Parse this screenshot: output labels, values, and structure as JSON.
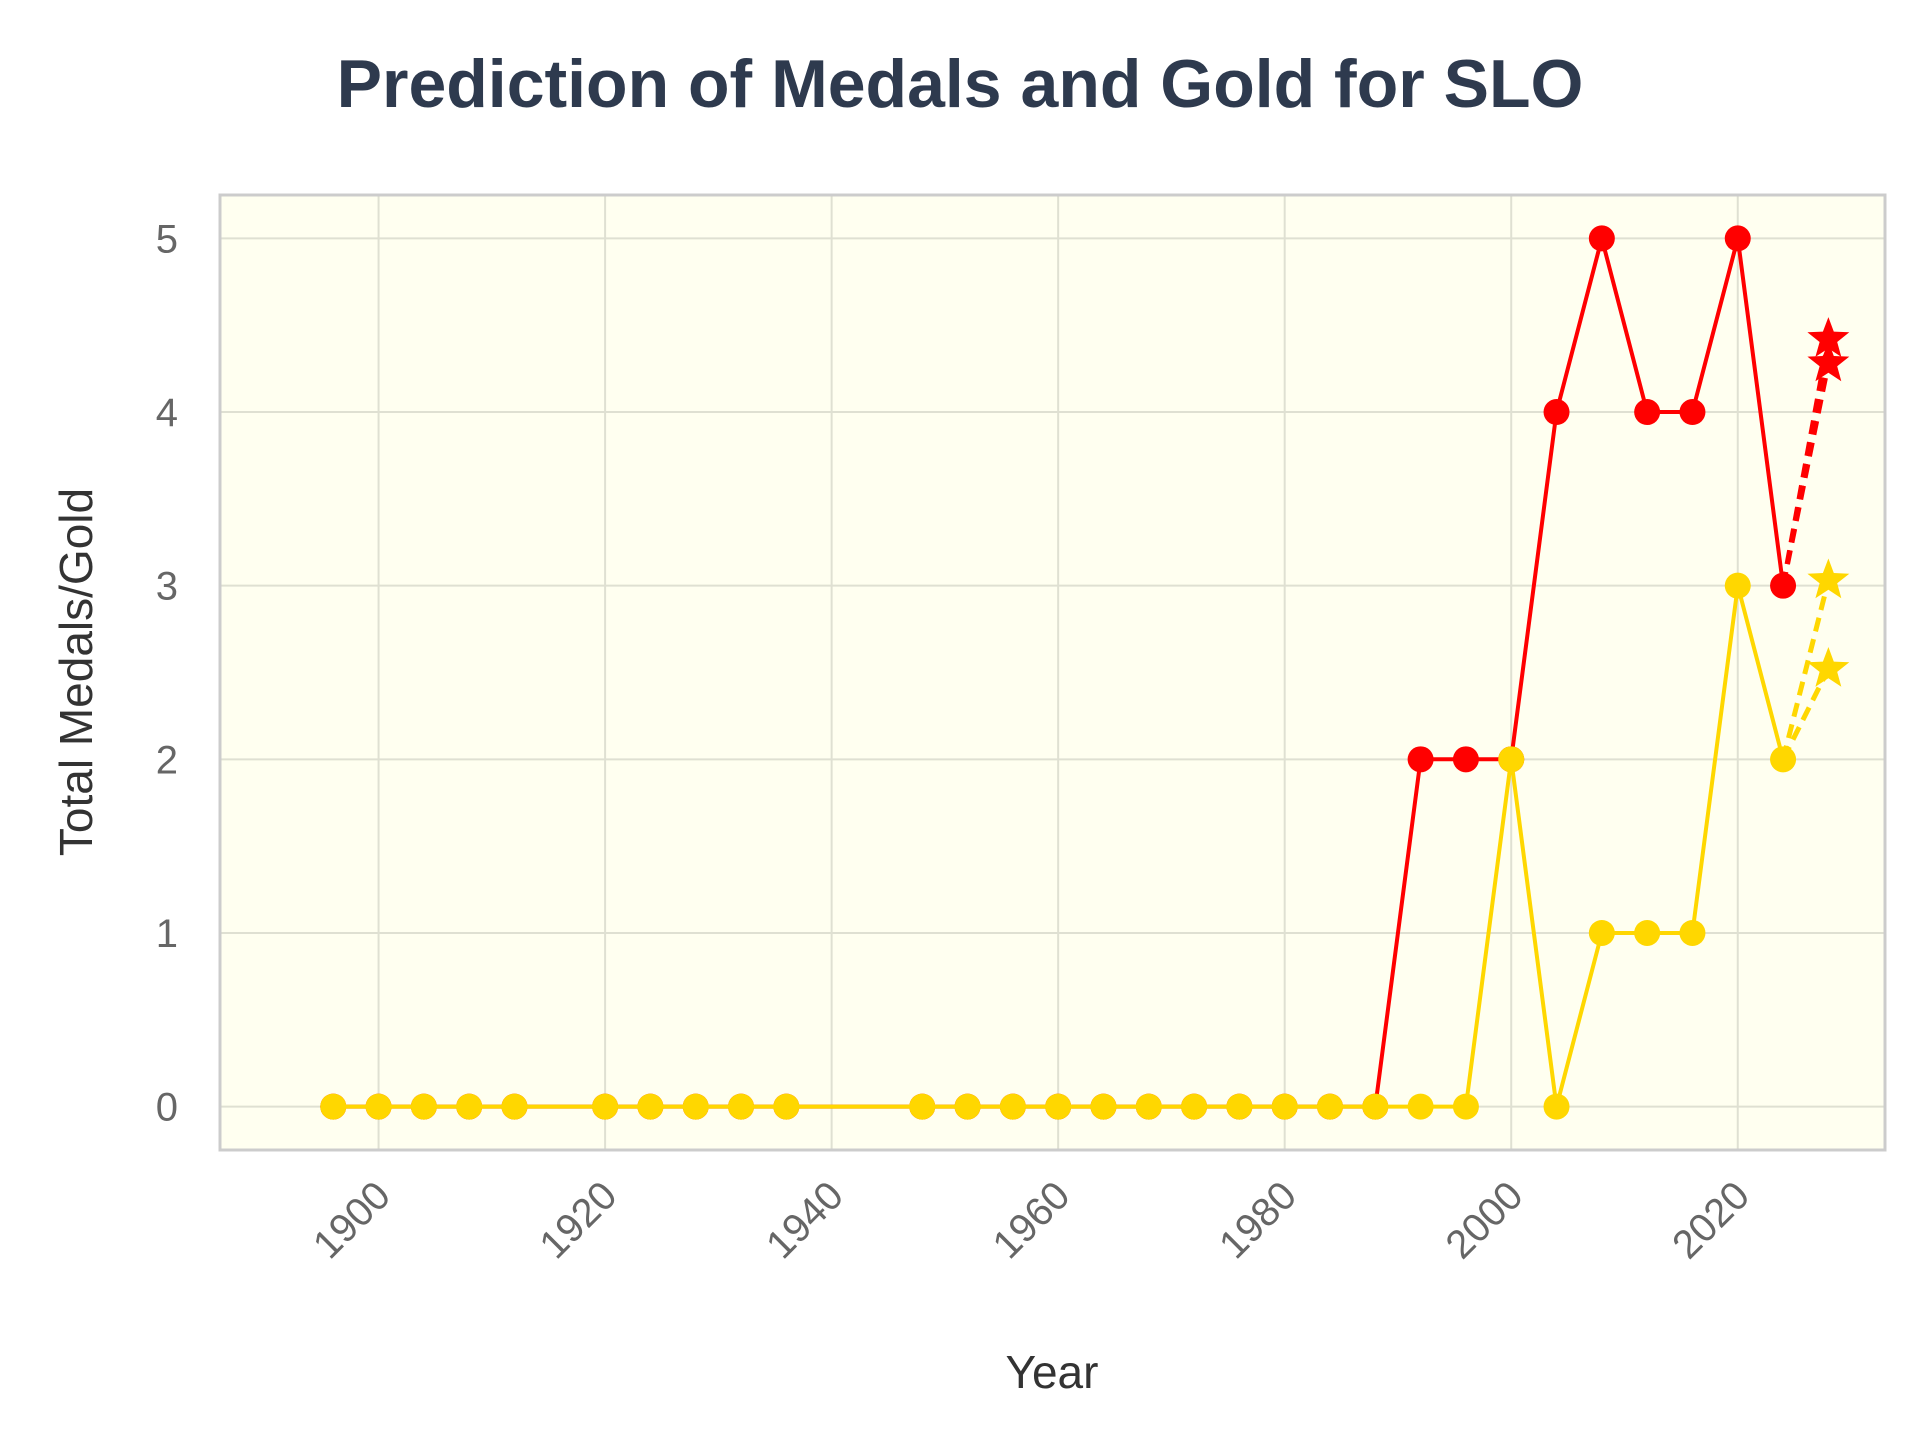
{
  "chart_data": {
    "type": "line",
    "title": "Prediction of Medals and Gold for SLO",
    "xlabel": "Year",
    "ylabel": "Total Medals/Gold",
    "xlim": [
      1886,
      2033
    ],
    "ylim": [
      -0.25,
      5.25
    ],
    "x_ticks": [
      1900,
      1920,
      1940,
      1960,
      1980,
      2000,
      2020
    ],
    "y_ticks": [
      0,
      1,
      2,
      3,
      4,
      5
    ],
    "grid": true,
    "legend": "none",
    "series": [
      {
        "color": "#ff0000",
        "style": "solid",
        "marker": "circle",
        "x": [
          1896,
          1900,
          1904,
          1908,
          1912,
          1920,
          1924,
          1928,
          1932,
          1936,
          1948,
          1952,
          1956,
          1960,
          1964,
          1968,
          1972,
          1976,
          1980,
          1984,
          1988,
          1992,
          1996,
          2000,
          2004,
          2008,
          2012,
          2016,
          2020,
          2024
        ],
        "y": [
          0,
          0,
          0,
          0,
          0,
          0,
          0,
          0,
          0,
          0,
          0,
          0,
          0,
          0,
          0,
          0,
          0,
          0,
          0,
          0,
          0,
          2,
          2,
          2,
          4,
          5,
          4,
          4,
          5,
          3
        ]
      },
      {
        "color": "#ffd700",
        "style": "solid",
        "marker": "circle",
        "x": [
          1896,
          1900,
          1904,
          1908,
          1912,
          1920,
          1924,
          1928,
          1932,
          1936,
          1948,
          1952,
          1956,
          1960,
          1964,
          1968,
          1972,
          1976,
          1980,
          1984,
          1988,
          1992,
          1996,
          2000,
          2004,
          2008,
          2012,
          2016,
          2020,
          2024
        ],
        "y": [
          0,
          0,
          0,
          0,
          0,
          0,
          0,
          0,
          0,
          0,
          0,
          0,
          0,
          0,
          0,
          0,
          0,
          0,
          0,
          0,
          0,
          0,
          0,
          2,
          0,
          1,
          1,
          1,
          3,
          2
        ]
      },
      {
        "color": "#ff0000",
        "style": "dashed",
        "marker": "star",
        "x": [
          2024,
          2028
        ],
        "y": [
          3,
          4.42
        ],
        "marker_from": 1
      },
      {
        "color": "#ff0000",
        "style": "dashed",
        "marker": "star",
        "x": [
          2024,
          2028
        ],
        "y": [
          3,
          4.28
        ],
        "marker_from": 1
      },
      {
        "color": "#ffd700",
        "style": "dashed",
        "marker": "star",
        "x": [
          2024,
          2028
        ],
        "y": [
          2,
          3.03
        ],
        "marker_from": 1
      },
      {
        "color": "#ffd700",
        "style": "dashed",
        "marker": "star",
        "x": [
          2024,
          2028
        ],
        "y": [
          2,
          2.52
        ],
        "marker_from": 1
      }
    ]
  },
  "colors": {
    "title": "#2e3a4e",
    "plot_background": "#fffff0",
    "frame": "#cccccc",
    "grid": "#dfe0d2",
    "tick_text": "#666666",
    "axis_text": "#333333"
  }
}
